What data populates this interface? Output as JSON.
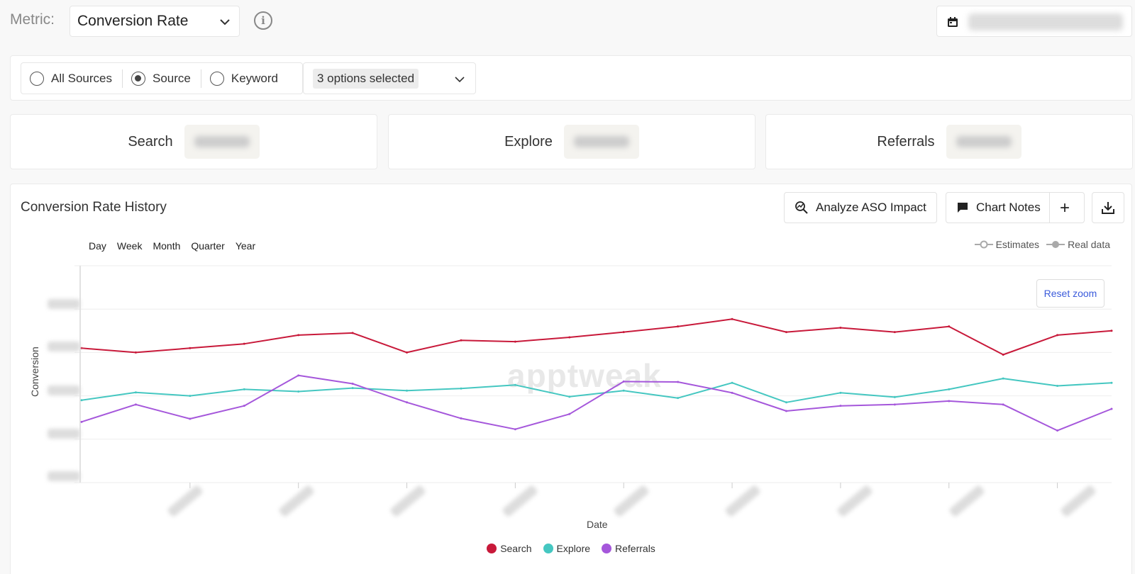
{
  "header": {
    "metric_label": "Metric:",
    "metric_value": "Conversion Rate"
  },
  "filters": {
    "radios": [
      {
        "label": "All Sources",
        "checked": false
      },
      {
        "label": "Source",
        "checked": true
      },
      {
        "label": "Keyword",
        "checked": false
      }
    ],
    "multi_select_label": "3 options selected"
  },
  "cards": [
    {
      "label": "Search"
    },
    {
      "label": "Explore"
    },
    {
      "label": "Referrals"
    }
  ],
  "panel": {
    "title": "Conversion Rate History",
    "analyze_label": "Analyze ASO Impact",
    "notes_label": "Chart Notes",
    "add_label": "+",
    "periods": [
      "Day",
      "Week",
      "Month",
      "Quarter",
      "Year"
    ],
    "legend_estimates": "Estimates",
    "legend_real": "Real data",
    "reset_zoom": "Reset zoom",
    "watermark": "apptweak"
  },
  "chart_data": {
    "type": "line",
    "xlabel": "Date",
    "ylabel": "Conversion",
    "ylim": [
      0,
      5
    ],
    "grid": true,
    "legend": "bottom",
    "series": [
      {
        "name": "Search",
        "color": "#c8193a",
        "values": [
          3.1,
          3.0,
          3.1,
          3.2,
          3.4,
          3.45,
          3.0,
          3.28,
          3.25,
          3.35,
          3.47,
          3.6,
          3.77,
          3.47,
          3.57,
          3.47,
          3.6,
          2.95,
          3.4,
          3.5
        ]
      },
      {
        "name": "Explore",
        "color": "#45c7c1",
        "values": [
          1.9,
          2.08,
          2.0,
          2.15,
          2.1,
          2.18,
          2.12,
          2.17,
          2.25,
          1.98,
          2.12,
          1.95,
          2.3,
          1.85,
          2.07,
          1.97,
          2.15,
          2.4,
          2.23,
          2.3
        ]
      },
      {
        "name": "Referrals",
        "color": "#a557db",
        "values": [
          1.4,
          1.8,
          1.47,
          1.77,
          2.47,
          2.28,
          1.85,
          1.48,
          1.23,
          1.58,
          2.33,
          2.32,
          2.07,
          1.65,
          1.77,
          1.8,
          1.88,
          1.8,
          1.2,
          1.7
        ]
      }
    ]
  }
}
